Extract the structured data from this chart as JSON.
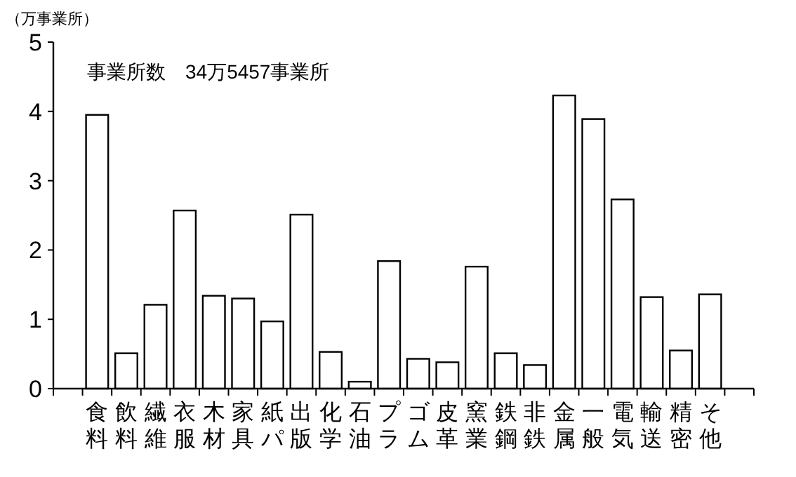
{
  "chart_data": {
    "type": "bar",
    "title": "事業所数　34万5457事業所",
    "ylabel": "（万事業所）",
    "categories": [
      "食料",
      "飲料",
      "繊維",
      "衣服",
      "木材",
      "家具",
      "紙パ",
      "出版",
      "化学",
      "石油",
      "プラ",
      "ゴム",
      "皮革",
      "窯業",
      "鉄鋼",
      "非鉄",
      "金属",
      "一般",
      "電気",
      "輸送",
      "精密",
      "そ他"
    ],
    "values": [
      3.95,
      0.51,
      1.21,
      2.57,
      1.34,
      1.3,
      0.97,
      2.51,
      0.53,
      0.1,
      1.84,
      0.43,
      0.38,
      1.76,
      0.51,
      0.34,
      4.23,
      3.89,
      2.73,
      1.32,
      0.55,
      1.36
    ],
    "color": "#ffffff",
    "ylim": [
      0,
      5
    ],
    "yticks": [
      0,
      1,
      2,
      3,
      4,
      5
    ]
  }
}
